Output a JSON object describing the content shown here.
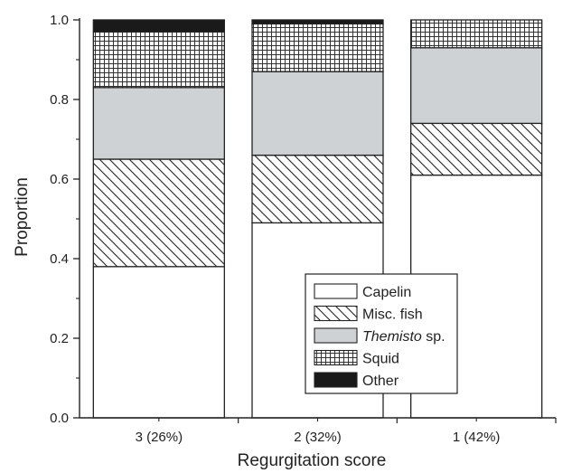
{
  "chart_data": {
    "type": "bar",
    "stacked": true,
    "categories": [
      "3 (26%)",
      "2 (32%)",
      "1 (42%)"
    ],
    "series": [
      {
        "name": "Capelin",
        "values": [
          0.38,
          0.49,
          0.61
        ],
        "fill": "white"
      },
      {
        "name": "Misc. fish",
        "values": [
          0.27,
          0.17,
          0.13
        ],
        "fill": "diagonal"
      },
      {
        "name_italic": "Themisto",
        "name_rest": " sp.",
        "values": [
          0.18,
          0.21,
          0.19
        ],
        "fill": "gray"
      },
      {
        "name": "Squid",
        "values": [
          0.14,
          0.12,
          0.07
        ],
        "fill": "grid"
      },
      {
        "name": "Other",
        "values": [
          0.03,
          0.01,
          0.0
        ],
        "fill": "black"
      }
    ],
    "xlabel": "Regurgitation score",
    "ylabel": "Proportion",
    "ylim": [
      0,
      1.0
    ],
    "yticks": [
      "0.0",
      "0.2",
      "0.4",
      "0.6",
      "0.8",
      "1.0"
    ],
    "legend_position": "lower-right",
    "colors": {
      "gray": "#cfd2d4",
      "black": "#1a1a1a",
      "stroke": "#222222"
    }
  }
}
